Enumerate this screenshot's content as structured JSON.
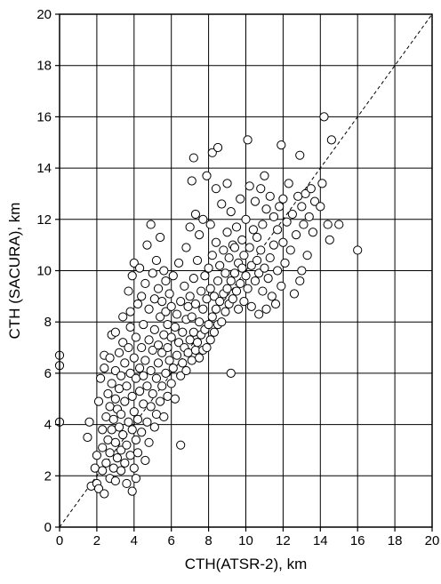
{
  "chart_data": {
    "type": "scatter",
    "xlabel": "CTH(ATSR-2), km",
    "ylabel": "CTH (SACURA), km",
    "xlim": [
      0,
      20
    ],
    "ylim": [
      0,
      20
    ],
    "x_ticks": [
      0,
      2,
      4,
      6,
      8,
      10,
      12,
      14,
      16,
      18,
      20
    ],
    "y_ticks": [
      0,
      2,
      4,
      6,
      8,
      10,
      12,
      14,
      16,
      18,
      20
    ],
    "x_tick_labels": [
      "0",
      "2",
      "4",
      "6",
      "8",
      "10",
      "12",
      "14",
      "16",
      "18",
      "20"
    ],
    "y_tick_labels": [
      "0",
      "2",
      "4",
      "6",
      "8",
      "10",
      "12",
      "14",
      "16",
      "18",
      "20"
    ],
    "grid": true,
    "reference_line": {
      "style": "dashed",
      "from": [
        0,
        0
      ],
      "to": [
        20,
        20
      ]
    },
    "marker": "open-circle",
    "colors": {
      "marker_edge": "#000000",
      "marker_fill": "#ffffff",
      "grid": "#000000"
    },
    "series": [
      {
        "points": [
          [
            0.0,
            4.1
          ],
          [
            0.0,
            6.3
          ],
          [
            0.0,
            6.7
          ],
          [
            1.5,
            3.5
          ],
          [
            1.6,
            4.1
          ],
          [
            1.7,
            1.6
          ],
          [
            1.9,
            2.3
          ],
          [
            2.0,
            1.7
          ],
          [
            2.0,
            2.8
          ],
          [
            2.1,
            1.5
          ],
          [
            2.1,
            4.9
          ],
          [
            2.2,
            5.8
          ],
          [
            2.3,
            2.2
          ],
          [
            2.3,
            3.1
          ],
          [
            2.3,
            3.8
          ],
          [
            2.4,
            1.3
          ],
          [
            2.4,
            6.2
          ],
          [
            2.4,
            6.7
          ],
          [
            2.5,
            2.5
          ],
          [
            2.5,
            4.3
          ],
          [
            2.6,
            3.4
          ],
          [
            2.6,
            5.2
          ],
          [
            2.7,
            1.9
          ],
          [
            2.7,
            2.9
          ],
          [
            2.7,
            4.7
          ],
          [
            2.7,
            6.6
          ],
          [
            2.8,
            3.8
          ],
          [
            2.8,
            5.6
          ],
          [
            2.8,
            7.5
          ],
          [
            2.9,
            2.3
          ],
          [
            2.9,
            4.2
          ],
          [
            3.0,
            1.8
          ],
          [
            3.0,
            3.3
          ],
          [
            3.0,
            5.0
          ],
          [
            3.0,
            6.1
          ],
          [
            3.0,
            7.6
          ],
          [
            3.1,
            2.7
          ],
          [
            3.1,
            4.6
          ],
          [
            3.2,
            3.9
          ],
          [
            3.2,
            5.4
          ],
          [
            3.2,
            6.8
          ],
          [
            3.3,
            2.2
          ],
          [
            3.3,
            3.0
          ],
          [
            3.3,
            4.4
          ],
          [
            3.3,
            5.9
          ],
          [
            3.4,
            3.6
          ],
          [
            3.4,
            7.2
          ],
          [
            3.4,
            8.2
          ],
          [
            3.5,
            2.5
          ],
          [
            3.5,
            4.9
          ],
          [
            3.5,
            6.4
          ],
          [
            3.6,
            1.7
          ],
          [
            3.6,
            3.2
          ],
          [
            3.6,
            5.5
          ],
          [
            3.7,
            4.1
          ],
          [
            3.7,
            7.0
          ],
          [
            3.7,
            9.2
          ],
          [
            3.8,
            2.8
          ],
          [
            3.8,
            6.0
          ],
          [
            3.8,
            7.8
          ],
          [
            3.8,
            8.4
          ],
          [
            3.9,
            1.4
          ],
          [
            3.9,
            3.8
          ],
          [
            3.9,
            5.1
          ],
          [
            3.9,
            9.8
          ],
          [
            4.0,
            2.3
          ],
          [
            4.0,
            4.5
          ],
          [
            4.0,
            6.6
          ],
          [
            4.0,
            10.3
          ],
          [
            4.1,
            1.9
          ],
          [
            4.1,
            3.4
          ],
          [
            4.1,
            5.8
          ],
          [
            4.1,
            7.4
          ],
          [
            4.2,
            2.9
          ],
          [
            4.2,
            4.2
          ],
          [
            4.2,
            8.7
          ],
          [
            4.3,
            5.3
          ],
          [
            4.3,
            6.2
          ],
          [
            4.3,
            10.1
          ],
          [
            4.4,
            3.7
          ],
          [
            4.4,
            7.0
          ],
          [
            4.4,
            9.0
          ],
          [
            4.5,
            4.8
          ],
          [
            4.5,
            5.9
          ],
          [
            4.5,
            7.9
          ],
          [
            4.6,
            2.6
          ],
          [
            4.6,
            6.5
          ],
          [
            4.6,
            9.5
          ],
          [
            4.7,
            4.1
          ],
          [
            4.7,
            5.5
          ],
          [
            4.7,
            11.0
          ],
          [
            4.8,
            3.3
          ],
          [
            4.8,
            7.3
          ],
          [
            4.8,
            8.5
          ],
          [
            4.9,
            4.7
          ],
          [
            4.9,
            6.1
          ],
          [
            4.9,
            11.8
          ],
          [
            5.0,
            5.2
          ],
          [
            5.0,
            6.9
          ],
          [
            5.0,
            9.9
          ],
          [
            5.1,
            3.9
          ],
          [
            5.1,
            7.7
          ],
          [
            5.1,
            8.9
          ],
          [
            5.2,
            4.4
          ],
          [
            5.2,
            5.8
          ],
          [
            5.2,
            10.4
          ],
          [
            5.3,
            6.4
          ],
          [
            5.3,
            7.1
          ],
          [
            5.3,
            9.3
          ],
          [
            5.4,
            4.9
          ],
          [
            5.4,
            8.2
          ],
          [
            5.4,
            11.3
          ],
          [
            5.5,
            5.5
          ],
          [
            5.5,
            6.8
          ],
          [
            5.5,
            8.8
          ],
          [
            5.6,
            4.3
          ],
          [
            5.6,
            7.5
          ],
          [
            5.6,
            10.0
          ],
          [
            5.7,
            6.0
          ],
          [
            5.7,
            8.4
          ],
          [
            5.7,
            9.6
          ],
          [
            5.8,
            5.1
          ],
          [
            5.8,
            7.0
          ],
          [
            5.8,
            7.9
          ],
          [
            5.9,
            6.5
          ],
          [
            5.9,
            9.1
          ],
          [
            6.0,
            5.6
          ],
          [
            6.0,
            7.4
          ],
          [
            6.0,
            8.6
          ],
          [
            6.1,
            6.2
          ],
          [
            6.1,
            9.8
          ],
          [
            6.2,
            5.0
          ],
          [
            6.2,
            7.8
          ],
          [
            6.3,
            6.7
          ],
          [
            6.3,
            8.3
          ],
          [
            6.4,
            7.2
          ],
          [
            6.4,
            10.3
          ],
          [
            6.5,
            3.2
          ],
          [
            6.5,
            5.9
          ],
          [
            6.5,
            8.8
          ],
          [
            6.6,
            6.4
          ],
          [
            6.6,
            7.6
          ],
          [
            6.7,
            7.0
          ],
          [
            6.7,
            9.4
          ],
          [
            6.8,
            6.1
          ],
          [
            6.8,
            8.1
          ],
          [
            6.8,
            10.9
          ],
          [
            6.9,
            6.8
          ],
          [
            6.9,
            8.6
          ],
          [
            7.0,
            7.3
          ],
          [
            7.0,
            9.0
          ],
          [
            7.0,
            11.7
          ],
          [
            7.1,
            6.5
          ],
          [
            7.1,
            8.2
          ],
          [
            7.1,
            13.5
          ],
          [
            7.2,
            7.6
          ],
          [
            7.2,
            9.7
          ],
          [
            7.2,
            14.4
          ],
          [
            7.3,
            6.9
          ],
          [
            7.3,
            8.7
          ],
          [
            7.3,
            12.2
          ],
          [
            7.4,
            7.2
          ],
          [
            7.4,
            10.4
          ],
          [
            7.5,
            6.6
          ],
          [
            7.5,
            8.0
          ],
          [
            7.5,
            11.4
          ],
          [
            7.6,
            7.5
          ],
          [
            7.6,
            9.2
          ],
          [
            7.7,
            6.9
          ],
          [
            7.7,
            8.5
          ],
          [
            7.7,
            12.0
          ],
          [
            7.8,
            7.7
          ],
          [
            7.8,
            9.8
          ],
          [
            7.9,
            7.0
          ],
          [
            7.9,
            8.9
          ],
          [
            7.9,
            13.7
          ],
          [
            8.0,
            7.9
          ],
          [
            8.0,
            10.1
          ],
          [
            8.1,
            7.3
          ],
          [
            8.1,
            9.3
          ],
          [
            8.1,
            11.8
          ],
          [
            8.2,
            8.2
          ],
          [
            8.2,
            10.6
          ],
          [
            8.2,
            14.6
          ],
          [
            8.3,
            7.6
          ],
          [
            8.3,
            9.0
          ],
          [
            8.4,
            8.5
          ],
          [
            8.4,
            11.1
          ],
          [
            8.4,
            13.2
          ],
          [
            8.5,
            7.9
          ],
          [
            8.5,
            9.6
          ],
          [
            8.5,
            14.8
          ],
          [
            8.6,
            8.8
          ],
          [
            8.6,
            10.2
          ],
          [
            8.7,
            8.0
          ],
          [
            8.7,
            12.6
          ],
          [
            8.8,
            9.1
          ],
          [
            8.8,
            10.8
          ],
          [
            8.9,
            8.4
          ],
          [
            8.9,
            9.9
          ],
          [
            9.0,
            9.3
          ],
          [
            9.0,
            11.5
          ],
          [
            9.0,
            13.4
          ],
          [
            9.1,
            8.7
          ],
          [
            9.1,
            10.5
          ],
          [
            9.2,
            6.0
          ],
          [
            9.2,
            9.6
          ],
          [
            9.2,
            12.3
          ],
          [
            9.3,
            8.9
          ],
          [
            9.3,
            11.0
          ],
          [
            9.4,
            9.9
          ],
          [
            9.4,
            10.9
          ],
          [
            9.5,
            9.2
          ],
          [
            9.5,
            11.7
          ],
          [
            9.6,
            8.5
          ],
          [
            9.6,
            10.3
          ],
          [
            9.7,
            9.5
          ],
          [
            9.7,
            12.8
          ],
          [
            9.8,
            10.1
          ],
          [
            9.8,
            11.2
          ],
          [
            9.9,
            8.8
          ],
          [
            9.9,
            10.6
          ],
          [
            10.0,
            9.8
          ],
          [
            10.0,
            12.0
          ],
          [
            10.1,
            15.1
          ],
          [
            10.1,
            9.3
          ],
          [
            10.2,
            10.9
          ],
          [
            10.2,
            13.3
          ],
          [
            10.3,
            8.6
          ],
          [
            10.3,
            10.2
          ],
          [
            10.4,
            11.6
          ],
          [
            10.5,
            9.6
          ],
          [
            10.5,
            12.7
          ],
          [
            10.6,
            10.4
          ],
          [
            10.6,
            11.3
          ],
          [
            10.7,
            8.3
          ],
          [
            10.7,
            9.9
          ],
          [
            10.8,
            10.8
          ],
          [
            10.8,
            13.2
          ],
          [
            10.9,
            9.2
          ],
          [
            10.9,
            11.8
          ],
          [
            11.0,
            10.1
          ],
          [
            11.0,
            13.7
          ],
          [
            11.1,
            8.5
          ],
          [
            11.1,
            12.4
          ],
          [
            11.2,
            9.7
          ],
          [
            11.3,
            10.5
          ],
          [
            11.3,
            12.9
          ],
          [
            11.4,
            9.0
          ],
          [
            11.5,
            11.0
          ],
          [
            11.5,
            12.1
          ],
          [
            11.6,
            8.7
          ],
          [
            11.7,
            10.0
          ],
          [
            11.7,
            11.6
          ],
          [
            11.8,
            12.5
          ],
          [
            11.9,
            9.4
          ],
          [
            11.9,
            14.9
          ],
          [
            12.0,
            11.1
          ],
          [
            12.0,
            12.8
          ],
          [
            12.1,
            10.3
          ],
          [
            12.2,
            11.9
          ],
          [
            12.3,
            13.4
          ],
          [
            12.4,
            10.8
          ],
          [
            12.5,
            12.2
          ],
          [
            12.6,
            9.1
          ],
          [
            12.7,
            11.4
          ],
          [
            12.8,
            12.9
          ],
          [
            12.9,
            9.6
          ],
          [
            12.9,
            14.5
          ],
          [
            13.0,
            10.0
          ],
          [
            13.0,
            12.5
          ],
          [
            13.1,
            11.8
          ],
          [
            13.2,
            13.0
          ],
          [
            13.3,
            10.6
          ],
          [
            13.4,
            12.1
          ],
          [
            13.5,
            13.2
          ],
          [
            13.6,
            11.5
          ],
          [
            13.7,
            12.7
          ],
          [
            14.0,
            12.5
          ],
          [
            14.1,
            13.4
          ],
          [
            14.2,
            16.0
          ],
          [
            14.4,
            11.8
          ],
          [
            14.5,
            11.2
          ],
          [
            14.6,
            15.1
          ],
          [
            15.0,
            11.8
          ],
          [
            16.0,
            10.8
          ]
        ]
      }
    ]
  }
}
